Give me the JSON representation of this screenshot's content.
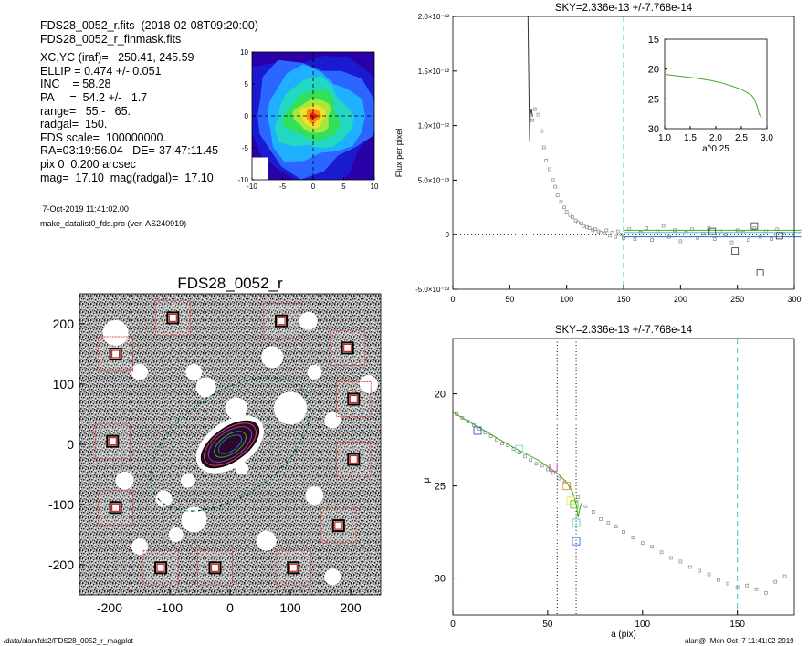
{
  "info": {
    "lines": [
      "FDS28_0052_r.fits  (2018-02-08T09:20:00)",
      "FDS28_0052_r_finmask.fits",
      "XC,YC (iraf)=   250.41, 245.59",
      "ELLIP = 0.474 +/- 0.051",
      "INC    = 58.28",
      "PA     =  54.2 +/-   1.7",
      "range=   55.-   65.",
      "radgal=  150.",
      "FDS scale=  100000000.",
      "RA=03:19:56.04   DE=-37:47:11.45",
      "pix 0  0.200 arcsec",
      "mag=  17.10  mag(radgal)=  17.10"
    ],
    "date": " 7-Oct-2019 11:41:02.00",
    "program": "make_datalist0_fds.pro (ver. AS240919)"
  },
  "footer": {
    "path": "/data/alan/fds2/FDS28_0052_r_magplot",
    "user": "alan@  Mon Oct  7 11:41:02 2019"
  },
  "colors": {
    "cyan_dash": "#33cccc",
    "mask_box": "#dd4444",
    "profile_green": "#44aa22",
    "points": "#888888"
  },
  "chart_data": [
    {
      "type": "heatmap",
      "title": "",
      "xlabel": "",
      "ylabel": "",
      "xlim": [
        -10,
        10
      ],
      "ylim": [
        -10,
        10
      ],
      "xticks": [
        -10,
        -5,
        0,
        5,
        10
      ],
      "yticks": [
        -10,
        -5,
        0,
        5,
        10
      ],
      "levels": [
        {
          "color": "#1a1ad0",
          "r": 11.5
        },
        {
          "color": "#2a66ff",
          "r": 9.8
        },
        {
          "color": "#1fb0ff",
          "r": 8.0
        },
        {
          "color": "#22d8c0",
          "r": 6.2
        },
        {
          "color": "#33e05a",
          "r": 4.4
        },
        {
          "color": "#a8e83a",
          "r": 3.0
        },
        {
          "color": "#f0e030",
          "r": 2.0
        },
        {
          "color": "#ff8800",
          "r": 1.2
        },
        {
          "color": "#e02020",
          "r": 0.55
        }
      ]
    },
    {
      "type": "scatter",
      "title": "SKY=2.336e-13 +/-7.768e-14",
      "xlabel": "",
      "ylabel": "Flux per pixel",
      "xlim": [
        0,
        300
      ],
      "ylim": [
        -5e-13,
        2e-12
      ],
      "xticks": [
        "0",
        "50",
        "100",
        "150",
        "200",
        "250",
        "300"
      ],
      "yticks": [
        "-5.0×10⁻¹³",
        "0",
        "5.0×10⁻¹³",
        "1.0×10⁻¹²",
        "1.5×10⁻¹²",
        "2.0×10⁻¹²"
      ],
      "vline": 150,
      "hline": 0,
      "series": [
        {
          "x": [
            70,
            72,
            75,
            78,
            80,
            82,
            85,
            88,
            90,
            92,
            95,
            98,
            100,
            103,
            105,
            108,
            110,
            113,
            115,
            118,
            120,
            123,
            125,
            128,
            130,
            133,
            135,
            138,
            140,
            143,
            145,
            148,
            150,
            155,
            160,
            165,
            170,
            175,
            180,
            185,
            190,
            195,
            200,
            205,
            210,
            215,
            220,
            225,
            230,
            235,
            240,
            245,
            250,
            255,
            260,
            265,
            270,
            275,
            280,
            285,
            290
          ],
          "y": [
            1.05e-12,
            1.15e-12,
            1.1e-12,
            9.5e-13,
            8e-13,
            6.8e-13,
            6e-13,
            5e-13,
            4.4e-13,
            3.6e-13,
            3e-13,
            2.5e-13,
            2.1e-13,
            1.8e-13,
            1.6e-13,
            1.3e-13,
            1.1e-13,
            1e-13,
            8e-14,
            7e-14,
            6e-14,
            4e-14,
            5e-14,
            3e-14,
            2e-14,
            1e-14,
            4e-14,
            -1e-14,
            2e-14,
            -2e-14,
            3e-14,
            0,
            -3e-14,
            5e-14,
            -4e-14,
            2e-14,
            6e-14,
            -5e-14,
            3e-14,
            8e-14,
            -2e-14,
            4e-14,
            -6e-14,
            2e-14,
            5e-14,
            -3e-14,
            1e-14,
            6e-14,
            -4e-14,
            3e-14,
            0,
            -7e-14,
            4e-14,
            2e-14,
            -5e-14,
            6e-14,
            -2e-14,
            3e-14,
            -4e-14,
            5e-14,
            1e-14
          ]
        }
      ],
      "curve": {
        "x": [
          66,
          66.5,
          67,
          67.5,
          68,
          69,
          70
        ],
        "y": [
          2e-12,
          1.6e-12,
          1.2e-12,
          8.5e-13,
          1.1e-12,
          1.15e-12,
          1.08e-12
        ]
      },
      "squares": [
        {
          "x": 228,
          "y": 3e-14
        },
        {
          "x": 248,
          "y": -1.5e-13
        },
        {
          "x": 265,
          "y": 8e-14
        },
        {
          "x": 270,
          "y": -3.5e-13
        },
        {
          "x": 287,
          "y": -1e-14
        }
      ],
      "inset": {
        "xlabel": "a^0.25",
        "xlim": [
          1.0,
          3.0
        ],
        "ylim": [
          30,
          15
        ],
        "xticks": [
          "1.0",
          "1.5",
          "2.0",
          "2.5",
          "3.0"
        ],
        "yticks": [
          "15",
          "20",
          "25",
          "30"
        ],
        "curve": {
          "x": [
            1.0,
            1.3,
            1.6,
            1.9,
            2.1,
            2.3,
            2.5,
            2.6,
            2.7,
            2.75,
            2.8,
            2.85,
            2.9
          ],
          "y": [
            20.9,
            21.2,
            21.5,
            21.9,
            22.3,
            22.8,
            23.4,
            23.9,
            24.4,
            25.0,
            26.0,
            27.6,
            28.2
          ]
        }
      }
    },
    {
      "type": "line",
      "title": "SKY=2.336e-13 +/-7.768e-14",
      "xlabel": "a (pix)",
      "ylabel": "μ",
      "xlim": [
        0,
        180
      ],
      "ylim": [
        32,
        17
      ],
      "xticks": [
        "0",
        "50",
        "100",
        "150"
      ],
      "yticks": [
        "20",
        "25",
        "30"
      ],
      "vlines_dotted": [
        55,
        65
      ],
      "vline_dashed": 150,
      "points": {
        "x": [
          2,
          5,
          8,
          11,
          14,
          17,
          20,
          23,
          26,
          29,
          32,
          35,
          38,
          41,
          44,
          47,
          50,
          53,
          56,
          59,
          62,
          66,
          70,
          74,
          78,
          82,
          86,
          90,
          95,
          100,
          105,
          110,
          115,
          120,
          125,
          130,
          135,
          140,
          145,
          150,
          155,
          160,
          165,
          170,
          175
        ],
        "y": [
          21.1,
          21.3,
          21.5,
          21.7,
          21.9,
          22.1,
          22.3,
          22.5,
          22.7,
          22.8,
          23.0,
          23.2,
          23.4,
          23.6,
          23.8,
          23.9,
          24.1,
          24.3,
          24.6,
          24.8,
          25.1,
          25.6,
          26.1,
          26.4,
          26.8,
          27.0,
          27.2,
          27.5,
          27.8,
          28.1,
          28.3,
          28.6,
          28.9,
          29.1,
          29.4,
          29.6,
          29.8,
          30.1,
          30.3,
          30.5,
          30.4,
          30.6,
          30.8,
          30.2,
          29.9
        ]
      },
      "profile": {
        "x": [
          0,
          15,
          30,
          45,
          55,
          60,
          63,
          65,
          66,
          67,
          68
        ],
        "y": [
          21.0,
          21.9,
          22.8,
          23.6,
          24.3,
          24.8,
          25.3,
          26.0,
          26.7,
          26.2,
          25.9
        ]
      },
      "squares": [
        {
          "x": 13,
          "y": 22.0,
          "color": "#4466cc"
        },
        {
          "x": 35,
          "y": 23.0,
          "color": "#88ddcc"
        },
        {
          "x": 53,
          "y": 24.0,
          "color": "#cc55cc"
        },
        {
          "x": 60,
          "y": 25.0,
          "color": "#ee9944"
        },
        {
          "x": 62,
          "y": 25.8,
          "color": "#eeee55"
        },
        {
          "x": 64,
          "y": 26.0,
          "color": "#66cc44"
        },
        {
          "x": 65,
          "y": 27.0,
          "color": "#44ddcc"
        },
        {
          "x": 65,
          "y": 28.0,
          "color": "#4488ee"
        }
      ]
    },
    {
      "type": "scatter",
      "title": "FDS28_0052_r",
      "xlabel": "",
      "ylabel": "",
      "xlim": [
        -250,
        250
      ],
      "ylim": [
        -250,
        250
      ],
      "xticks": [
        "-200",
        "-100",
        "0",
        "100",
        "200"
      ],
      "yticks": [
        "-200",
        "-100",
        "0",
        "100",
        "200"
      ],
      "galaxy": {
        "cx": 0,
        "cy": 0,
        "a": 55,
        "b": 28,
        "pa": 35
      },
      "sky_ellipse": {
        "a": 150,
        "b": 85,
        "pa": 35
      },
      "mask_boxes": [
        {
          "x": -95,
          "y": 210
        },
        {
          "x": 85,
          "y": 205
        },
        {
          "x": -190,
          "y": 150
        },
        {
          "x": 195,
          "y": 160
        },
        {
          "x": 205,
          "y": 75
        },
        {
          "x": -195,
          "y": 5
        },
        {
          "x": 205,
          "y": -25
        },
        {
          "x": -190,
          "y": -105
        },
        {
          "x": 180,
          "y": -135
        },
        {
          "x": -115,
          "y": -205
        },
        {
          "x": -25,
          "y": -205
        },
        {
          "x": 105,
          "y": -205
        }
      ]
    }
  ]
}
